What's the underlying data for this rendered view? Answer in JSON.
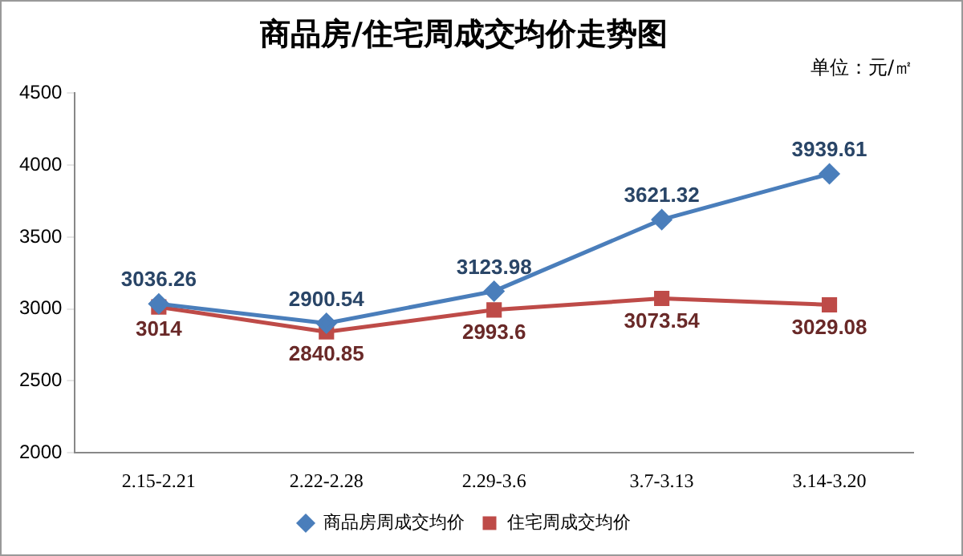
{
  "chart_data": {
    "type": "line",
    "title": "商品房/住宅周成交均价走势图",
    "subtitle": "单位：元/㎡",
    "categories": [
      "2.15-2.21",
      "2.22-2.28",
      "2.29-3.6",
      "3.7-3.13",
      "3.14-3.20"
    ],
    "series": [
      {
        "name": "商品房周成交均价",
        "color": "#4a7ebb",
        "marker": "diamond",
        "values": [
          3036.26,
          2900.54,
          3123.98,
          3621.32,
          3939.61
        ]
      },
      {
        "name": "住宅周成交均价",
        "color": "#be4b48",
        "marker": "square",
        "values": [
          3014,
          2840.85,
          2993.6,
          3073.54,
          3029.08
        ]
      }
    ],
    "ylim": [
      2000,
      4500
    ],
    "yticks": [
      2000,
      2500,
      3000,
      3500,
      4000,
      4500
    ],
    "grid": false,
    "legend": "bottom",
    "data_labels": true
  }
}
